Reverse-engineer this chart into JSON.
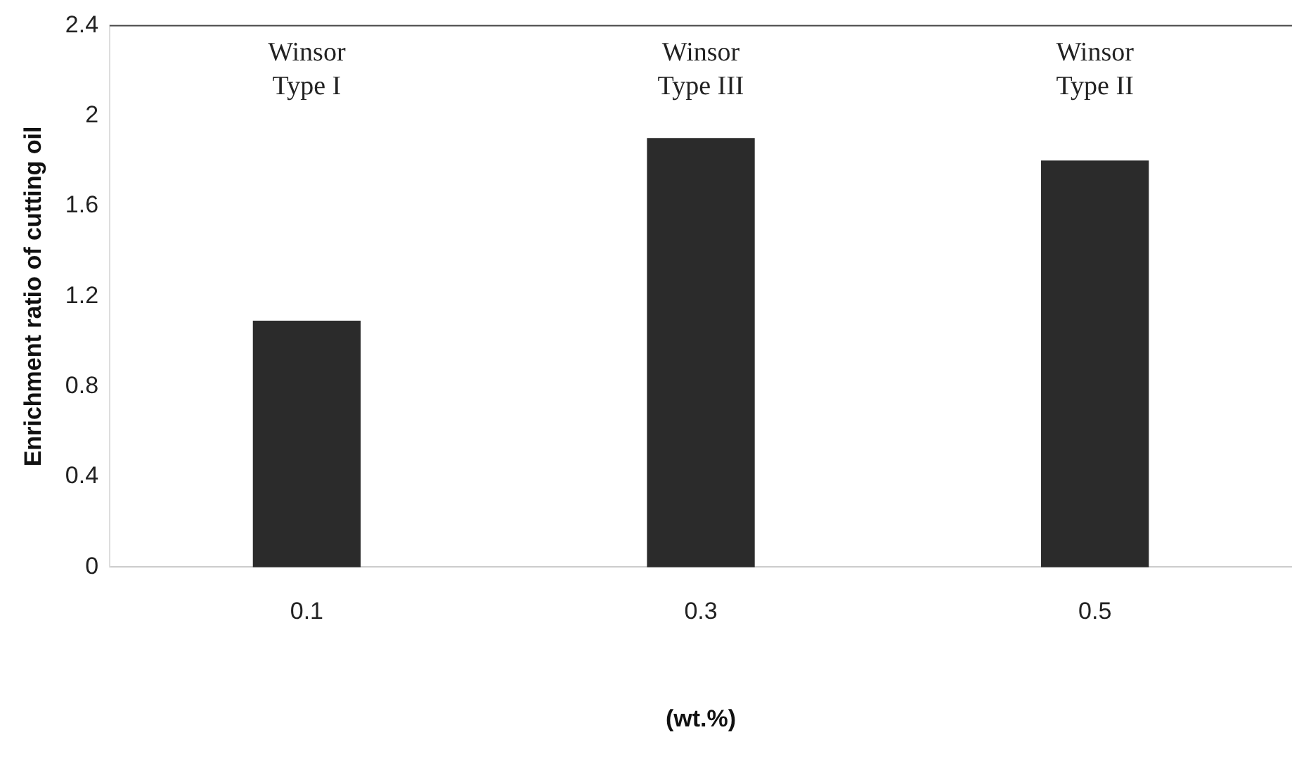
{
  "chart_data": {
    "type": "bar",
    "xlabel": "(wt.%)",
    "ylabel": "Enrichment ratio of cutting oil",
    "categories": [
      "0.1",
      "0.3",
      "0.5"
    ],
    "values": [
      1.09,
      1.9,
      1.8
    ],
    "color": "#2b2b2b",
    "ylim": [
      0,
      2.4
    ],
    "yticks": [
      0,
      0.4,
      0.8,
      1.2,
      1.6,
      2,
      2.4
    ],
    "grid": false,
    "legend": false,
    "annotations": [
      "Winsor\nType I",
      "Winsor\nType III",
      "Winsor\nType II"
    ]
  }
}
